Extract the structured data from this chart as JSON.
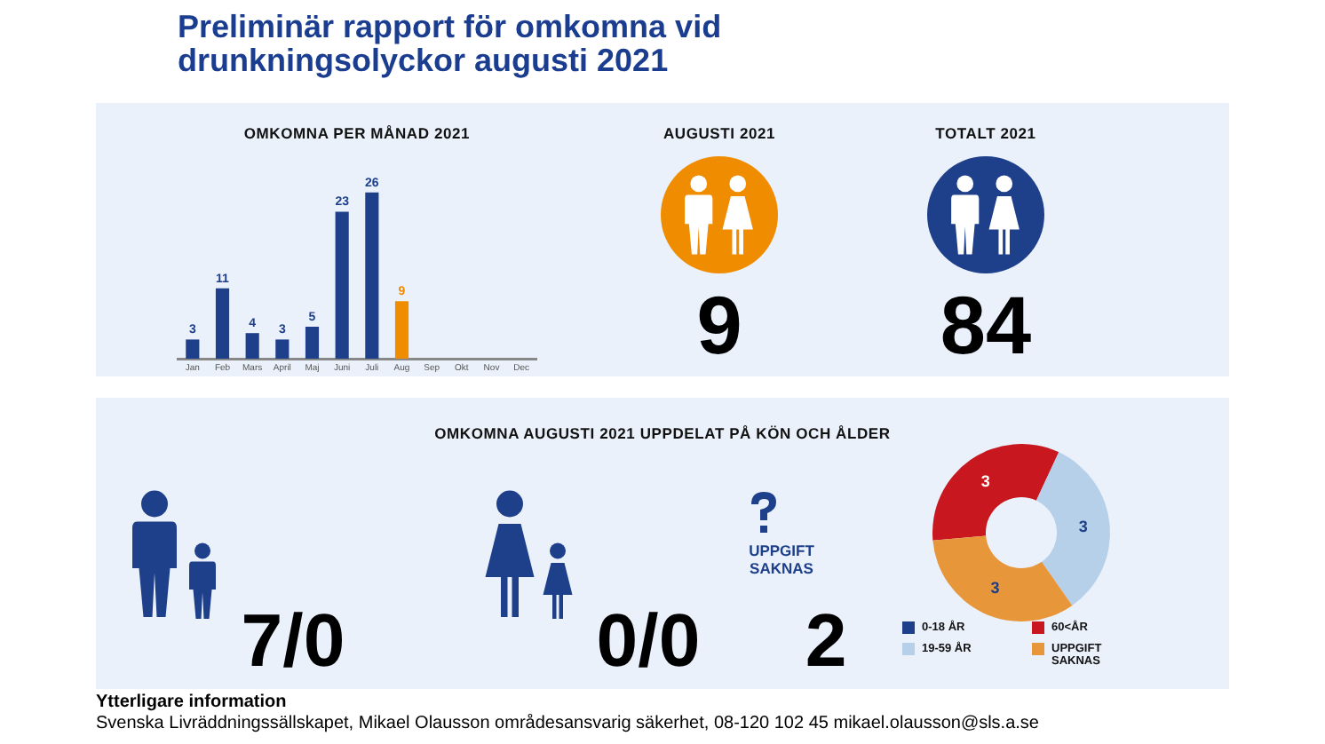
{
  "chart_data": [
    {
      "type": "other",
      "title": "Preliminär rapport för omkomna vid drunkningsolyckor augusti 2021"
    },
    {
      "type": "bar",
      "title": "OMKOMNA PER MÅNAD 2021",
      "categories": [
        "Jan",
        "Feb",
        "Mars",
        "April",
        "Maj",
        "Juni",
        "Juli",
        "Aug",
        "Sep",
        "Okt",
        "Nov",
        "Dec"
      ],
      "values": [
        3,
        11,
        4,
        3,
        5,
        23,
        26,
        9,
        null,
        null,
        null,
        null
      ],
      "colors": [
        "#1e3f8a",
        "#1e3f8a",
        "#1e3f8a",
        "#1e3f8a",
        "#1e3f8a",
        "#1e3f8a",
        "#1e3f8a",
        "#f08c00",
        "#1e3f8a",
        "#1e3f8a",
        "#1e3f8a",
        "#1e3f8a"
      ],
      "data_labels": true,
      "tick_labels": "x",
      "grid": false
    },
    {
      "type": "other",
      "title": "AUGUSTI 2021",
      "annotations": [
        "9"
      ]
    },
    {
      "type": "other",
      "title": "TOTALT 2021",
      "annotations": [
        "84"
      ]
    },
    {
      "type": "other",
      "title": "OMKOMNA AUGUSTI 2021 UPPDELAT PÅ KÖN OCH ÅLDER",
      "annotations": [
        "7/0",
        "0/0",
        "UPPGIFT SAKNAS",
        "2"
      ]
    },
    {
      "type": "donut",
      "categories": [
        "0-18 ÅR",
        "60<ÅR",
        "19-59 ÅR",
        "UPPGIFT SAKNAS"
      ],
      "values": [
        0,
        3,
        3,
        3
      ],
      "colors": [
        "#1e3f8a",
        "#c8171e",
        "#b5d0e8",
        "#e8963a"
      ],
      "data_labels": true,
      "legend": "bottom"
    },
    {
      "type": "other",
      "title": "Ytterligare information",
      "annotations": [
        "Svenska Livräddningssällskapet, Mikael Olausson områdesansvarig säkerhet, 08-120 102 45 mikael.olausson@sls.a.se"
      ]
    }
  ]
}
